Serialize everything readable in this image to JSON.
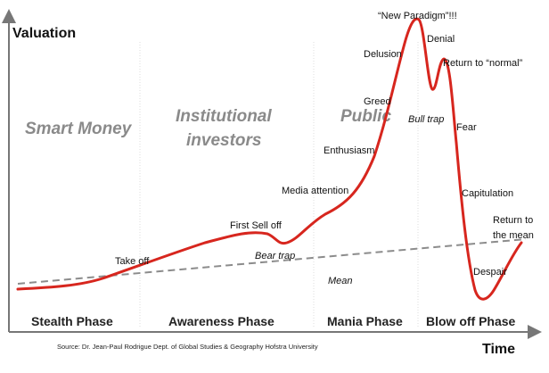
{
  "axes": {
    "y_label": "Valuation",
    "x_label": "Time"
  },
  "investor_groups": [
    "Smart Money",
    "Institutional",
    "investors",
    "Public"
  ],
  "phases": [
    "Stealth Phase",
    "Awareness Phase",
    "Mania Phase",
    "Blow off Phase"
  ],
  "annotations": {
    "take_off": "Take off",
    "first_sell_off": "First Sell off",
    "bear_trap": "Bear trap",
    "media_attention": "Media attention",
    "enthusiasm": "Enthusiasm",
    "greed": "Greed",
    "delusion": "Delusion",
    "new_paradigm": "“New Paradigm”!!!",
    "denial": "Denial",
    "bull_trap": "Bull trap",
    "return_normal": "Return to “normal”",
    "fear": "Fear",
    "capitulation": "Capitulation",
    "despair": "Despair",
    "return_mean_1": "Return to",
    "return_mean_2": "the mean",
    "mean": "Mean"
  },
  "source": "Source: Dr. Jean-Paul Rodrigue Dept. of Global Studies & Geography Hofstra University",
  "colors": {
    "curve": "#d7261e",
    "mean": "#8c8c8c",
    "axis": "#777777"
  }
}
